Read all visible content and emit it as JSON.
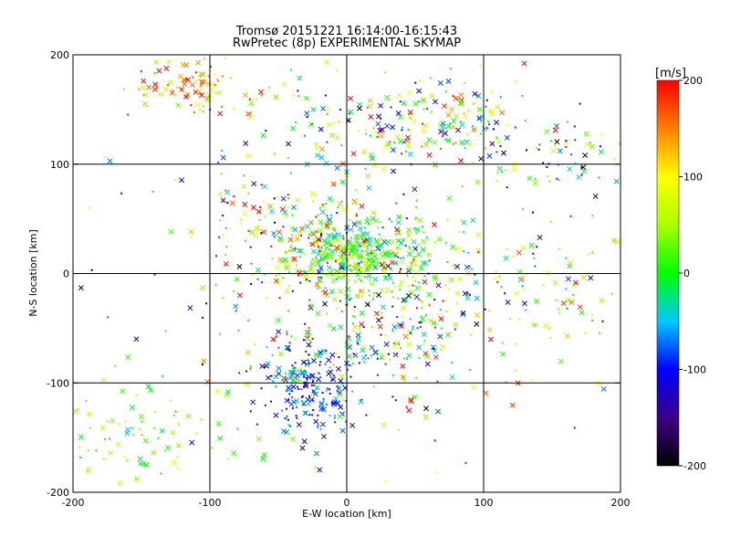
{
  "chart_data": {
    "type": "scatter",
    "title": "Tromsø 20151221 16:14:00-16:15:43",
    "subtitle": "RwPretec (8p) EXPERIMENTAL SKYMAP",
    "xlabel": "E-W location [km]",
    "ylabel": "N-S location [km]",
    "xlim": [
      -200,
      200
    ],
    "ylim": [
      -200,
      200
    ],
    "xticks": [
      "-200",
      "-100",
      "0",
      "100",
      "200"
    ],
    "yticks": [
      "-200",
      "-100",
      "0",
      "100",
      "200"
    ],
    "grid": true,
    "colorbar": {
      "label": "[m/s]",
      "range": [
        -200,
        200
      ],
      "ticks": [
        "200",
        "100",
        "0",
        "-100",
        "-200"
      ],
      "colormap": "rainbow-black-to-red"
    },
    "clusters": [
      {
        "cx": 10,
        "cy": 18,
        "sx": 28,
        "sy": 16,
        "n": 420,
        "vmean": 15,
        "vsd": 55
      },
      {
        "cx": -28,
        "cy": -105,
        "sx": 16,
        "sy": 22,
        "n": 200,
        "vmean": -85,
        "vsd": 35
      },
      {
        "cx": 40,
        "cy": 140,
        "sx": 55,
        "sy": 22,
        "n": 230,
        "vmean": 20,
        "vsd": 110
      },
      {
        "cx": -112,
        "cy": 170,
        "sx": 22,
        "sy": 14,
        "n": 90,
        "vmean": 150,
        "vsd": 60
      },
      {
        "cx": 155,
        "cy": 108,
        "sx": 28,
        "sy": 18,
        "n": 60,
        "vmean": -30,
        "vsd": 130
      },
      {
        "cx": 20,
        "cy": -55,
        "sx": 45,
        "sy": 35,
        "n": 260,
        "vmean": 40,
        "vsd": 130
      },
      {
        "cx": 110,
        "cy": -15,
        "sx": 60,
        "sy": 30,
        "n": 120,
        "vmean": 60,
        "vsd": 90
      },
      {
        "cx": -150,
        "cy": -150,
        "sx": 28,
        "sy": 30,
        "n": 80,
        "vmean": 30,
        "vsd": 45
      },
      {
        "cx": -30,
        "cy": 40,
        "sx": 35,
        "sy": 30,
        "n": 170,
        "vmean": 90,
        "vsd": 110
      },
      {
        "cx": 0,
        "cy": 0,
        "sx": 120,
        "sy": 110,
        "n": 170,
        "vmean": 0,
        "vsd": 130
      }
    ]
  }
}
